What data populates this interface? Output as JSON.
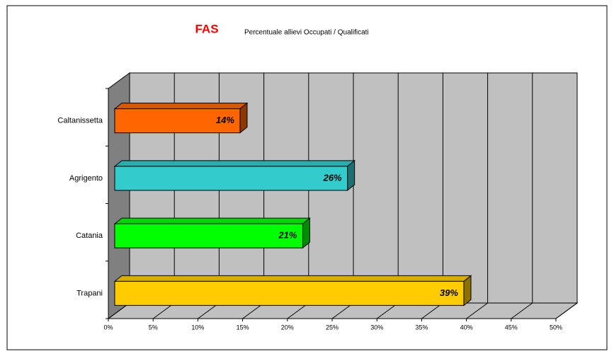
{
  "chart_data": {
    "type": "bar",
    "orientation": "horizontal",
    "title": "FAS",
    "subtitle": "Percentuale allievi Occupati / Qualificati",
    "categories": [
      "Caltanissetta",
      "Agrigento",
      "Catania",
      "Trapani"
    ],
    "values": [
      14,
      26,
      21,
      39
    ],
    "value_labels": [
      "14%",
      "26%",
      "21%",
      "39%"
    ],
    "colors": [
      "#ff6600",
      "#33cccc",
      "#00ff00",
      "#ffcc00"
    ],
    "xlim": [
      0,
      50
    ],
    "xticks": [
      {
        "value": 0,
        "label": "0%"
      },
      {
        "value": 5,
        "label": "5%"
      },
      {
        "value": 10,
        "label": "10%"
      },
      {
        "value": 15,
        "label": "15%"
      },
      {
        "value": 20,
        "label": "20%"
      },
      {
        "value": 25,
        "label": "25%"
      },
      {
        "value": 30,
        "label": "30%"
      },
      {
        "value": 35,
        "label": "35%"
      },
      {
        "value": 40,
        "label": "40%"
      },
      {
        "value": 45,
        "label": "45%"
      },
      {
        "value": 50,
        "label": "50%"
      }
    ],
    "grid": true
  }
}
